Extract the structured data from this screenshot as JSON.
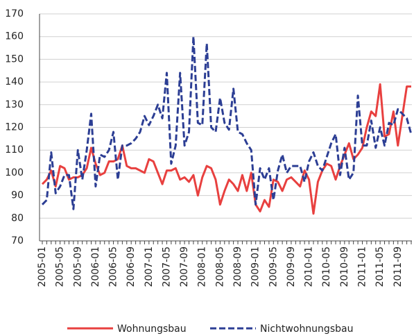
{
  "chart_data": {
    "type": "line",
    "categories": [
      "2005-01",
      null,
      null,
      null,
      "2005-05",
      null,
      null,
      null,
      "2005-09",
      null,
      null,
      null,
      "2006-01",
      null,
      null,
      null,
      "2006-05",
      null,
      null,
      null,
      "2006-09",
      null,
      null,
      null,
      "2007-01",
      null,
      null,
      null,
      "2007-05",
      null,
      null,
      null,
      "2007-09",
      null,
      null,
      null,
      "2008-01",
      null,
      null,
      null,
      "2008-05",
      null,
      null,
      null,
      "2008-09",
      null,
      null,
      null,
      "2009-01",
      null,
      null,
      null,
      "2009-05",
      null,
      null,
      null,
      "2009-09",
      null,
      null,
      null,
      "2010-01",
      null,
      null,
      null,
      "2010-05",
      null,
      null,
      null,
      "2010-09",
      null,
      null,
      null,
      "2011-01",
      null,
      null,
      null,
      "2011-05",
      null,
      null,
      null,
      "2011-09",
      null,
      null,
      null
    ],
    "series": [
      {
        "name": "Wohnungsbau",
        "color": "#e8403f",
        "dash": false,
        "values": [
          95,
          97,
          101,
          94,
          103,
          102,
          97,
          98,
          98,
          99,
          102,
          111,
          104,
          99,
          100,
          105,
          105,
          106,
          112,
          103,
          102,
          102,
          101,
          100,
          106,
          105,
          100,
          95,
          101,
          101,
          102,
          97,
          98,
          96,
          99,
          90,
          98,
          103,
          102,
          97,
          86,
          92,
          97,
          95,
          92,
          99,
          92,
          100,
          86,
          83,
          88,
          85,
          97,
          96,
          92,
          97,
          98,
          96,
          94,
          101,
          97,
          82,
          96,
          101,
          104,
          103,
          97,
          103,
          108,
          113,
          106,
          108,
          111,
          120,
          127,
          125,
          139,
          116,
          117,
          127,
          112,
          125,
          138,
          138
        ]
      },
      {
        "name": "Nichtwohnungsbau",
        "color": "#2c3e94",
        "dash": true,
        "values": [
          86,
          88,
          109,
          91,
          94,
          99,
          99,
          84,
          110,
          97,
          110,
          126,
          94,
          108,
          107,
          110,
          118,
          97,
          112,
          112,
          113,
          115,
          118,
          125,
          121,
          125,
          130,
          124,
          144,
          104,
          112,
          144,
          112,
          118,
          160,
          122,
          121,
          157,
          120,
          118,
          133,
          122,
          119,
          137,
          118,
          117,
          113,
          110,
          86,
          102,
          97,
          102,
          88,
          101,
          108,
          100,
          103,
          103,
          103,
          96,
          105,
          109,
          103,
          101,
          107,
          113,
          117,
          99,
          111,
          97,
          100,
          134,
          112,
          112,
          123,
          111,
          120,
          112,
          122,
          121,
          128,
          126,
          124,
          117
        ]
      }
    ],
    "ylim": [
      70,
      170
    ],
    "yticks": [
      70,
      80,
      90,
      100,
      110,
      120,
      130,
      140,
      150,
      160,
      170
    ],
    "grid": true
  }
}
